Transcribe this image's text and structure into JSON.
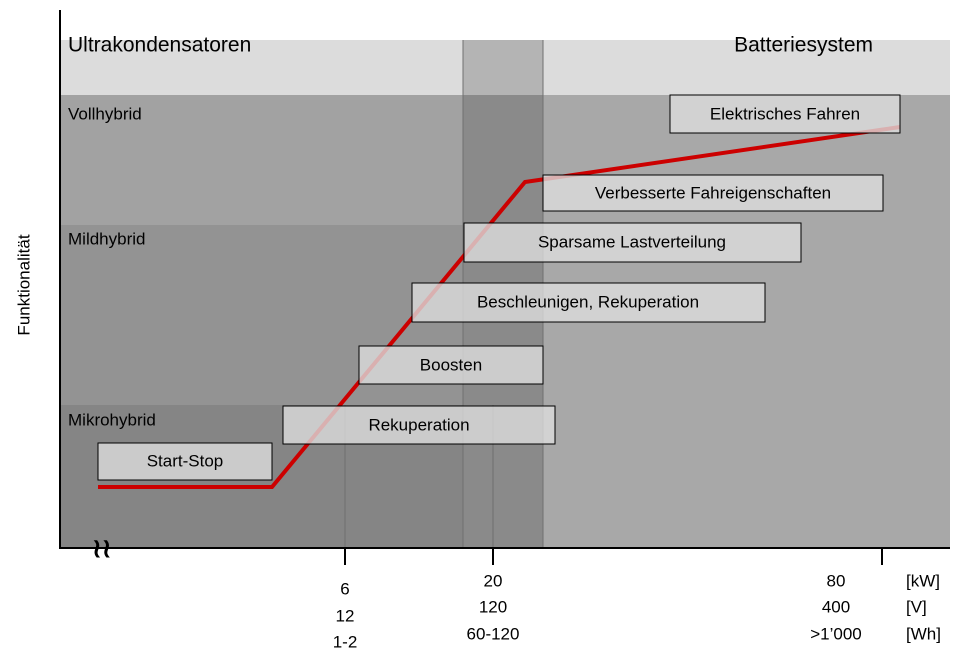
{
  "header": {
    "left": "Ultrakondensatoren",
    "right": "Batteriesystem"
  },
  "y_axis": {
    "label": "Funktionalität"
  },
  "zones": [
    "Vollhybrid",
    "Mildhybrid",
    "Mikrohybrid"
  ],
  "boxes": [
    "Start-Stop",
    "Rekuperation",
    "Boosten",
    "Beschleunigen, Rekuperation",
    "Sparsame Lastverteilung",
    "Verbesserte Fahreigenschaften",
    "Elektrisches Fahren"
  ],
  "x_axis": {
    "ticks": [
      [
        "6",
        "12",
        "1-2"
      ],
      [
        "20",
        "120",
        "60-120"
      ],
      [
        "80",
        "400",
        ">1’000"
      ]
    ],
    "units": [
      "[kW]",
      "[V]",
      "[Wh]"
    ]
  }
}
